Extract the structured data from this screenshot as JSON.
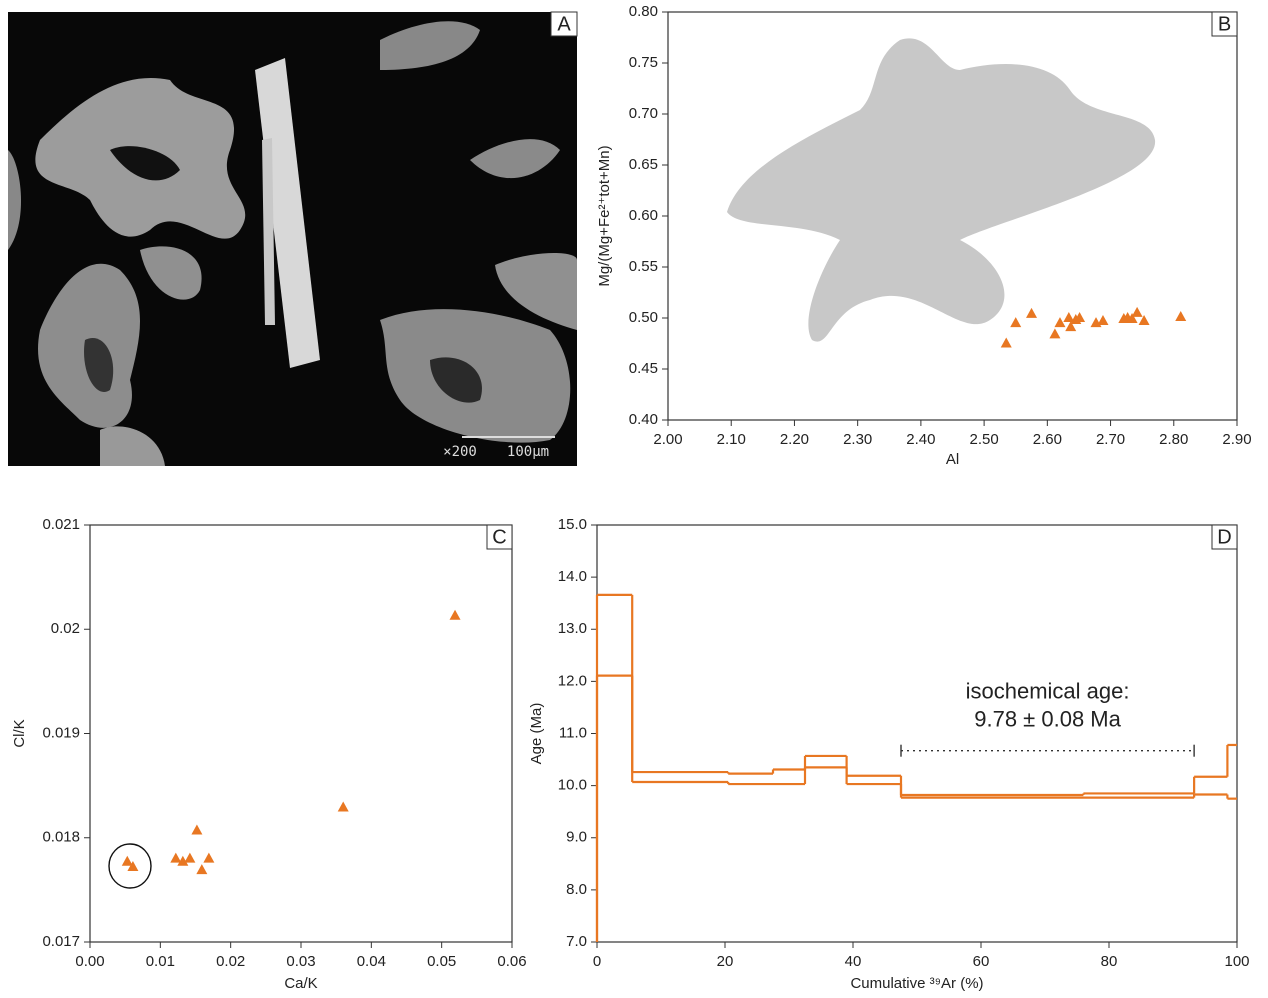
{
  "chart_data": [
    {
      "type": "image",
      "label": "A",
      "magnification": "×200",
      "scale_bar": "100µm"
    },
    {
      "type": "scatter",
      "label": "B",
      "xlabel": "Al",
      "ylabel": "Mg/(Mg+Fe²⁺tot+Mn)",
      "color": "#e87722",
      "xlim": [
        2.0,
        2.9
      ],
      "xticks": [
        {
          "value": 2.0,
          "label": "2.00"
        },
        {
          "value": 2.1,
          "label": "2.10"
        },
        {
          "value": 2.2,
          "label": "2.20"
        },
        {
          "value": 2.3,
          "label": "2.30"
        },
        {
          "value": 2.4,
          "label": "2.40"
        },
        {
          "value": 2.5,
          "label": "2.50"
        },
        {
          "value": 2.6,
          "label": "2.60"
        },
        {
          "value": 2.7,
          "label": "2.70"
        },
        {
          "value": 2.8,
          "label": "2.80"
        },
        {
          "value": 2.9,
          "label": "2.90"
        }
      ],
      "ylim": [
        0.4,
        0.8
      ],
      "yticks": [
        {
          "value": 0.4,
          "label": "0.40"
        },
        {
          "value": 0.45,
          "label": "0.45"
        },
        {
          "value": 0.5,
          "label": "0.50"
        },
        {
          "value": 0.55,
          "label": "0.55"
        },
        {
          "value": 0.6,
          "label": "0.60"
        },
        {
          "value": 0.65,
          "label": "0.65"
        },
        {
          "value": 0.7,
          "label": "0.70"
        },
        {
          "value": 0.75,
          "label": "0.75"
        },
        {
          "value": 0.8,
          "label": "0.80"
        }
      ],
      "x": [
        2.535,
        2.55,
        2.575,
        2.612,
        2.62,
        2.634,
        2.637,
        2.645,
        2.651,
        2.677,
        2.688,
        2.721,
        2.727,
        2.734,
        2.742,
        2.753,
        2.811
      ],
      "values": [
        0.475,
        0.495,
        0.504,
        0.484,
        0.495,
        0.5,
        0.491,
        0.498,
        0.5,
        0.495,
        0.497,
        0.499,
        0.5,
        0.499,
        0.505,
        0.497,
        0.501
      ]
    },
    {
      "type": "scatter",
      "label": "C",
      "xlabel": "Ca/K",
      "ylabel": "Cl/K",
      "color": "#e87722",
      "xlim": [
        0,
        0.06
      ],
      "xticks": [
        {
          "value": 0,
          "label": "0.00"
        },
        0.01,
        0.02,
        0.03,
        0.04,
        0.05,
        0.06
      ],
      "ylim": [
        0.017,
        0.021
      ],
      "yticks": [
        0.017,
        0.018,
        0.019,
        0.02,
        0.021
      ],
      "x": [
        0.0053,
        0.0061,
        0.0122,
        0.0132,
        0.0142,
        0.0152,
        0.0159,
        0.0169,
        0.036,
        0.0519
      ],
      "values": [
        0.01777,
        0.01772,
        0.0178,
        0.01777,
        0.0178,
        0.01807,
        0.01769,
        0.0178,
        0.01829,
        0.02013
      ]
    },
    {
      "type": "step",
      "label": "D",
      "xlabel": "Cumulative ³⁹Ar (%)",
      "ylabel": "Age (Ma)",
      "xlim": [
        0,
        100
      ],
      "xticks": [
        0,
        20,
        40,
        60,
        80,
        100
      ],
      "ylim": [
        7,
        15
      ],
      "yticks": [
        {
          "value": 7,
          "label": "7.0"
        },
        {
          "value": 8,
          "label": "8.0"
        },
        {
          "value": 9,
          "label": "9.0"
        },
        {
          "value": 10,
          "label": "10.0"
        },
        {
          "value": 11,
          "label": "11.0"
        },
        {
          "value": 12,
          "label": "12.0"
        },
        {
          "value": 13,
          "label": "13.0"
        },
        {
          "value": 14,
          "label": "14.0"
        },
        {
          "value": 15,
          "label": "15.0"
        }
      ],
      "series": [
        {
          "color": "#e87722",
          "bins": [
            0,
            5.5,
            20.5,
            27.5,
            32.5,
            39,
            47.5,
            76,
            93.3,
            98.5,
            100
          ],
          "values": [
            13.66,
            10.26,
            10.23,
            10.31,
            10.57,
            10.19,
            9.82,
            9.85,
            10.17,
            10.78
          ]
        },
        {
          "color": "#e87722",
          "bins": [
            0,
            5.5,
            20.5,
            32.5,
            39,
            47.5,
            93.3,
            98.5,
            100
          ],
          "values": [
            12.11,
            10.07,
            10.03,
            10.35,
            10.03,
            9.77,
            9.83,
            9.75
          ]
        }
      ],
      "annotation": [
        "isochemical age:",
        "9.78 ± 0.08 Ma"
      ],
      "plateau": {
        "x": [
          47.5,
          93.3
        ],
        "y": 10.67
      }
    }
  ]
}
